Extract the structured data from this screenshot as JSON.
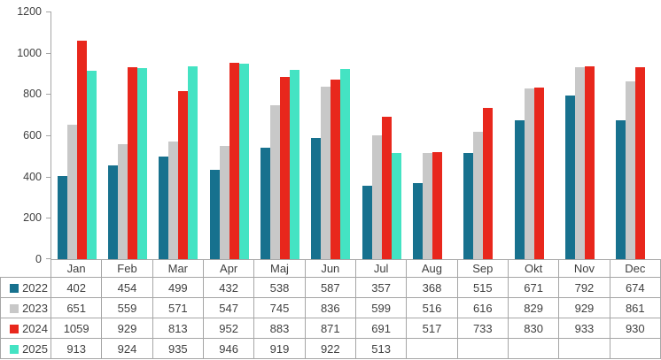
{
  "chart_data": {
    "type": "bar",
    "title": "",
    "xlabel": "",
    "ylabel": "",
    "categories": [
      "Jan",
      "Feb",
      "Mar",
      "Apr",
      "Maj",
      "Jun",
      "Jul",
      "Aug",
      "Sep",
      "Okt",
      "Nov",
      "Dec"
    ],
    "series": [
      {
        "name": "2022",
        "color": "#17718E",
        "values": [
          402,
          454,
          499,
          432,
          538,
          587,
          357,
          368,
          515,
          671,
          792,
          674
        ]
      },
      {
        "name": "2023",
        "color": "#C8C8C8",
        "values": [
          651,
          559,
          571,
          547,
          745,
          836,
          599,
          516,
          616,
          829,
          929,
          861
        ]
      },
      {
        "name": "2024",
        "color": "#E8271C",
        "values": [
          1059,
          929,
          813,
          952,
          883,
          871,
          691,
          517,
          733,
          830,
          933,
          930
        ]
      },
      {
        "name": "2025",
        "color": "#44E3C3",
        "values": [
          913,
          924,
          935,
          946,
          919,
          922,
          513,
          null,
          null,
          null,
          null,
          null
        ]
      }
    ],
    "ylim": [
      0,
      1200
    ],
    "yticks": [
      0,
      200,
      400,
      600,
      800,
      1000,
      1200
    ],
    "grid": false,
    "legend_position": "data-table-left-column",
    "data_table_shown": true
  },
  "colors": {
    "axis": "#A6A6A6",
    "table_border": "#A6A6A6",
    "text": "#404040",
    "background": "#FFFFFF"
  }
}
